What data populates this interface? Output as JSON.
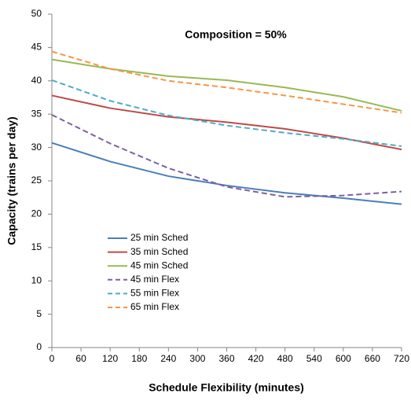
{
  "chart_data": {
    "type": "line",
    "title": "Composition = 50%",
    "x_label": "Schedule Flexibility (minutes)",
    "y_label": "Capacity (trains per day)",
    "x": [
      0,
      120,
      240,
      360,
      480,
      600,
      720
    ],
    "series": [
      {
        "name": "25 min Sched",
        "color": "#4a7ebb",
        "dashed": false,
        "values": [
          30.7,
          27.9,
          25.7,
          24.3,
          23.2,
          22.4,
          21.5
        ]
      },
      {
        "name": "35 min Sched",
        "color": "#be4b48",
        "dashed": false,
        "values": [
          37.8,
          35.9,
          34.6,
          33.8,
          32.8,
          31.4,
          29.7
        ]
      },
      {
        "name": "45 min Sched",
        "color": "#98b954",
        "dashed": false,
        "values": [
          43.2,
          41.8,
          40.7,
          40.1,
          39.0,
          37.6,
          35.5
        ]
      },
      {
        "name": "45 min Flex",
        "color": "#7d60a0",
        "dashed": true,
        "values": [
          34.9,
          30.6,
          26.9,
          24.1,
          22.6,
          22.8,
          23.4
        ]
      },
      {
        "name": "55 min Flex",
        "color": "#4bacc6",
        "dashed": true,
        "values": [
          40.1,
          37.0,
          34.8,
          33.3,
          32.2,
          31.3,
          30.2
        ]
      },
      {
        "name": "65 min Flex",
        "color": "#f79646",
        "dashed": true,
        "values": [
          44.4,
          41.8,
          40.0,
          39.0,
          37.8,
          36.5,
          35.2
        ]
      }
    ],
    "xlim": [
      0,
      720
    ],
    "xticks": [
      0,
      60,
      120,
      180,
      240,
      300,
      360,
      420,
      480,
      540,
      600,
      660,
      720
    ],
    "ylim": [
      0,
      50
    ],
    "yticks": [
      0,
      5,
      10,
      15,
      20,
      25,
      30,
      35,
      40,
      45,
      50
    ],
    "grid": false,
    "legend": "left"
  }
}
